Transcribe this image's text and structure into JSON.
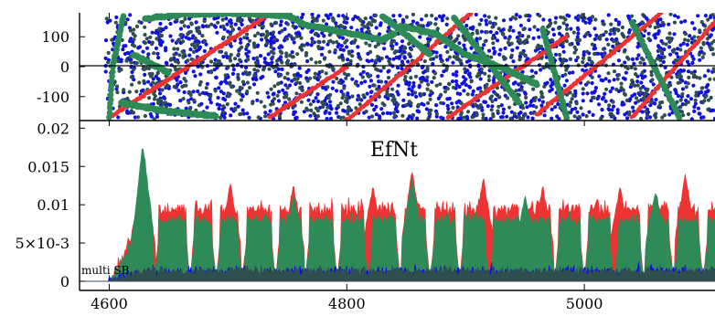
{
  "chart_data": [
    {
      "panel": "top",
      "type": "scatter",
      "title": "",
      "xlabel": "",
      "ylabel": "",
      "xlim": [
        4575,
        5110
      ],
      "ylim": [
        -180,
        180
      ],
      "yticks": [
        100,
        0,
        -100
      ],
      "ytick_labels": [
        "100",
        "0",
        "-100"
      ],
      "zero_line": true,
      "grid": false,
      "scatter_series": [
        {
          "color": "#1010e0",
          "count": 1700,
          "description": "dense random phase cloud"
        },
        {
          "color": "#2f4f4f",
          "count": 1100,
          "description": "dense random phase cloud"
        }
      ],
      "red_tracks": [
        {
          "x": [
            4600,
            4735
          ],
          "y": [
            -170,
            175
          ]
        },
        {
          "x": [
            4735,
            4800
          ],
          "y": [
            -170,
            0
          ]
        },
        {
          "x": [
            4800,
            4905
          ],
          "y": [
            -180,
            180
          ]
        },
        {
          "x": [
            4885,
            4985
          ],
          "y": [
            -170,
            100
          ]
        },
        {
          "x": [
            4960,
            5065
          ],
          "y": [
            -160,
            180
          ]
        },
        {
          "x": [
            5040,
            5110
          ],
          "y": [
            -170,
            150
          ]
        }
      ],
      "green_tracks": [
        {
          "x": [
            4600,
            4603,
            4612
          ],
          "y": [
            -170,
            0,
            170
          ]
        },
        {
          "x": [
            4610,
            4650,
            4690
          ],
          "y": [
            -120,
            -150,
            -165
          ]
        },
        {
          "x": [
            4630,
            4660,
            4705,
            4750,
            4765,
            4830,
            4840
          ],
          "y": [
            160,
            175,
            178,
            170,
            140,
            90,
            110
          ]
        },
        {
          "x": [
            4830,
            4855,
            4870
          ],
          "y": [
            170,
            90,
            40
          ]
        },
        {
          "x": [
            4845,
            4875,
            4900,
            4935,
            4960
          ],
          "y": [
            135,
            110,
            40,
            -10,
            -60
          ]
        },
        {
          "x": [
            4890,
            4945
          ],
          "y": [
            165,
            -120
          ]
        },
        {
          "x": [
            4965,
            4985
          ],
          "y": [
            125,
            -170
          ]
        },
        {
          "x": [
            5040,
            5080
          ],
          "y": [
            150,
            -170
          ]
        },
        {
          "x": [
            4620,
            4650
          ],
          "y": [
            40,
            -20
          ]
        }
      ]
    },
    {
      "panel": "bottom",
      "type": "area",
      "title": "EfNt",
      "xlabel": "",
      "ylabel": "",
      "xlim": [
        4575,
        5110
      ],
      "ylim": [
        -0.0012,
        0.021
      ],
      "yticks": [
        0.02,
        0.015,
        0.01,
        0.005,
        0
      ],
      "ytick_labels": [
        "0.02",
        "0.015",
        "0.01",
        "5×10-3",
        "0"
      ],
      "xticks": [
        4600,
        4800,
        5000
      ],
      "xtick_labels": [
        "4600",
        "4800",
        "5000"
      ],
      "grid": false,
      "legend": "multi SB",
      "legend_position": "bottom-left",
      "series": [
        {
          "color": "#ee3333",
          "baseline": 0.0095,
          "noise": 0.0012
        },
        {
          "color": "#2e8b57",
          "baseline": 0.008,
          "noise": 0.001
        },
        {
          "color": "#1010e0",
          "baseline": 0.0012,
          "noise": 0.0009
        },
        {
          "color": "#2f4f4f",
          "baseline": 0.0013,
          "noise": 0.0007
        }
      ],
      "onset_x": 4600,
      "red_spikes": [
        {
          "x": 4630,
          "y": 0.0128
        },
        {
          "x": 4702,
          "y": 0.0128
        },
        {
          "x": 4755,
          "y": 0.0125
        },
        {
          "x": 4822,
          "y": 0.0125
        },
        {
          "x": 4855,
          "y": 0.0145
        },
        {
          "x": 4915,
          "y": 0.0135
        },
        {
          "x": 4965,
          "y": 0.0125
        },
        {
          "x": 5030,
          "y": 0.0125
        },
        {
          "x": 5085,
          "y": 0.014
        }
      ],
      "green_spikes": [
        {
          "x": 4628,
          "y": 0.0183
        },
        {
          "x": 4755,
          "y": 0.0112
        },
        {
          "x": 4855,
          "y": 0.0136
        },
        {
          "x": 4950,
          "y": 0.0112
        },
        {
          "x": 5060,
          "y": 0.0118
        }
      ],
      "dropouts_x": [
        4638,
        4668,
        4690,
        4712,
        4740,
        4765,
        4792,
        4818,
        4845,
        4870,
        4895,
        4920,
        4948,
        4975,
        5000,
        5025,
        5050,
        5075,
        5100
      ]
    }
  ]
}
